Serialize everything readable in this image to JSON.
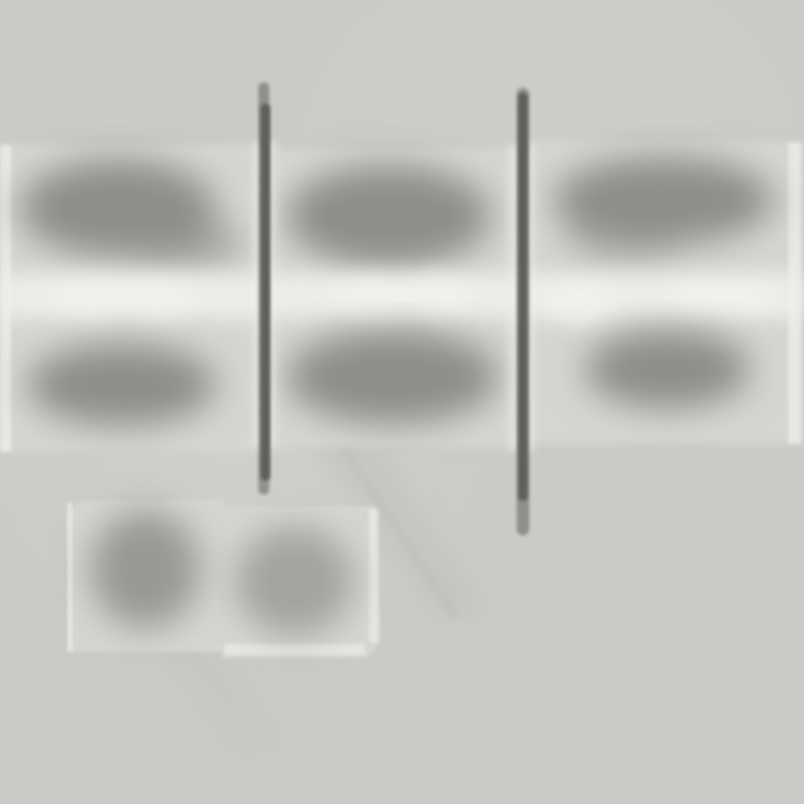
{
  "texture": {
    "background_color": "#cbcac6",
    "panel_color": "#d6d5d2",
    "dark_blob_color": "#8d8d8a",
    "highlight_color": "#f1f0ec",
    "rod_color": "#5f5f5d"
  }
}
